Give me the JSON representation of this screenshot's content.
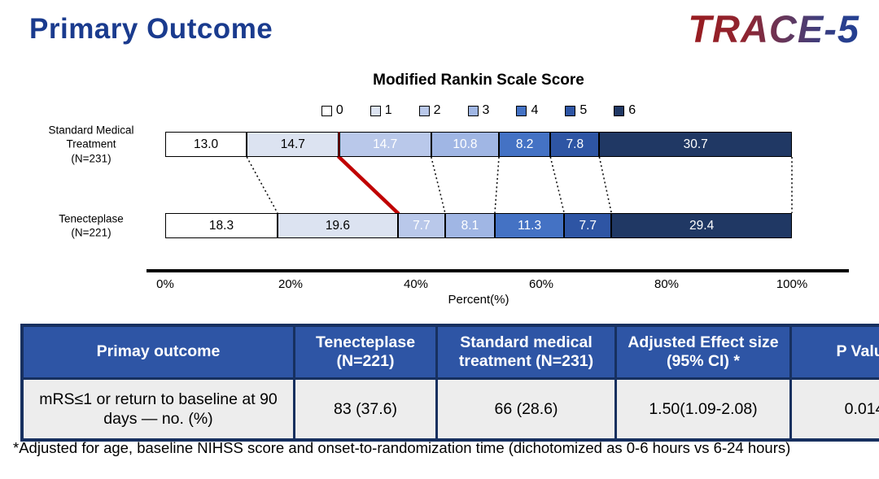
{
  "header": {
    "title": "Primary Outcome",
    "logo_text": "TRACE-5"
  },
  "chart_data": {
    "type": "bar",
    "subtype": "horizontal-100pct-stacked",
    "title": "Modified Rankin Scale Score",
    "xlabel": "Percent(%)",
    "x_ticks": [
      "0%",
      "20%",
      "40%",
      "60%",
      "80%",
      "100%"
    ],
    "xlim": [
      0,
      100
    ],
    "categories": [
      "0",
      "1",
      "2",
      "3",
      "4",
      "5",
      "6"
    ],
    "legend": {
      "labels": [
        "0",
        "1",
        "2",
        "3",
        "4",
        "5",
        "6"
      ],
      "colors": [
        "#ffffff",
        "#dce3f1",
        "#b9c8ea",
        "#a0b6e4",
        "#4472c4",
        "#2e55a4",
        "#203864"
      ],
      "text_colors": [
        "#000000",
        "#000000",
        "#ffffff",
        "#ffffff",
        "#ffffff",
        "#ffffff",
        "#ffffff"
      ]
    },
    "series": [
      {
        "name": "Standard Medical Treatment",
        "n_label": "(N=231)",
        "values": [
          13.0,
          14.7,
          14.7,
          10.8,
          8.2,
          7.8,
          30.7
        ]
      },
      {
        "name": "Tenecteplase",
        "n_label": "(N=221)",
        "values": [
          18.3,
          19.6,
          7.7,
          8.1,
          11.3,
          7.7,
          29.4
        ]
      }
    ],
    "divider": {
      "color": "#c00000",
      "after_category_index": 1,
      "description": "red line separating mRS 0-1 from mRS 2-6 across both bars"
    },
    "connector_style": "dotted lines join segment boundaries between the two bars"
  },
  "table": {
    "headers": [
      "Primay outcome",
      "Tenecteplase (N=221)",
      "Standard medical treatment (N=231)",
      "Adjusted Effect size (95% CI) *",
      "P Value"
    ],
    "rows": [
      [
        "mRS≤1 or  return to baseline at 90 days — no. (%)",
        "83 (37.6)",
        "66 (28.6)",
        "1.50(1.09-2.08)",
        "0.014"
      ]
    ]
  },
  "footnote": "*Adjusted for age, baseline NIHSS score and onset-to-randomization time (dichotomized as 0-6 hours vs 6-24 hours)",
  "colors": {
    "title_blue": "#1a3b8e",
    "logo_gradient": [
      "#991b1f",
      "#2a3f8d"
    ],
    "table_header_bg": "#2e55a5",
    "table_border": "#17305f",
    "table_body_bg": "#ededed",
    "red_divider": "#c00000"
  }
}
